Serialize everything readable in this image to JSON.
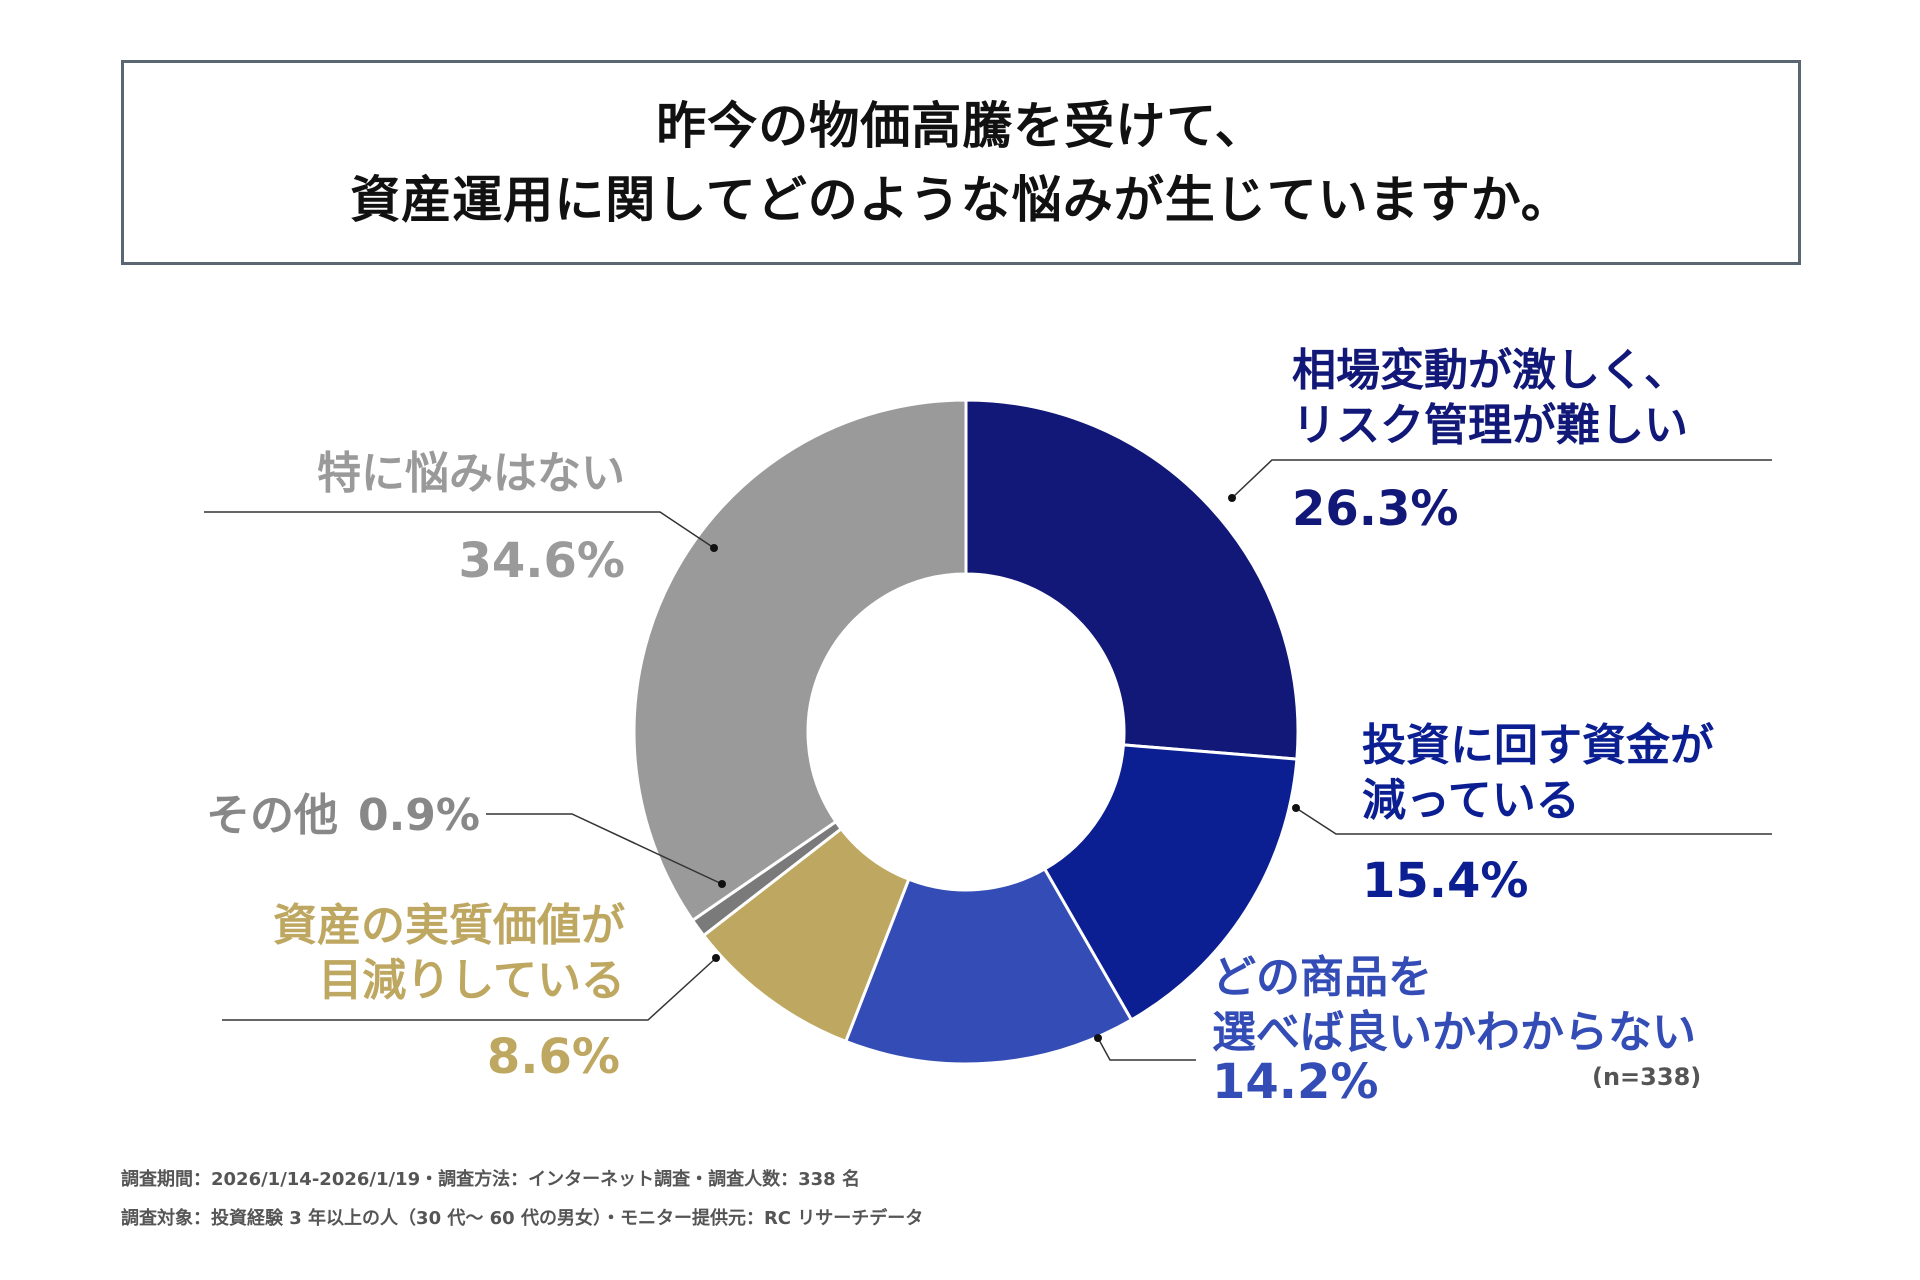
{
  "header": {
    "title_line1": "昨今の物価高騰を受けて、",
    "title_line2": "資産運用に関してどのような悩みが生じていますか。"
  },
  "chart_data": {
    "type": "pie",
    "style": "donut",
    "start": "top",
    "direction": "clockwise",
    "sample_note": "(n=338)",
    "slices": [
      {
        "label_lines": [
          "相場変動が激しく、",
          "リスク管理が難しい"
        ],
        "value": 26.3,
        "value_label": "26.3%",
        "color": "#121877"
      },
      {
        "label_lines": [
          "投資に回す資金が",
          "減っている"
        ],
        "value": 15.4,
        "value_label": "15.4%",
        "color": "#0c1f92"
      },
      {
        "label_lines": [
          "どの商品を",
          "選べば良いかわからない"
        ],
        "value": 14.2,
        "value_label": "14.2%",
        "color": "#344db6"
      },
      {
        "label_lines": [
          "資産の実質価値が",
          "目減りしている"
        ],
        "value": 8.6,
        "value_label": "8.6%",
        "color": "#bea760"
      },
      {
        "label_lines": [
          "その他"
        ],
        "value": 0.9,
        "value_label": "0.9%",
        "color": "#7a7a7a"
      },
      {
        "label_lines": [
          "特に悩みはない"
        ],
        "value": 34.6,
        "value_label": "34.6%",
        "color": "#9a9a9a"
      }
    ]
  },
  "footer": {
    "line1": "調査期間：2026/1/14-2026/1/19・調査方法：インターネット調査・調査人数：338 名",
    "line2": "調査対象：投資経験 3 年以上の人（30 代～ 60 代の男女）・モニター提供元：RC リサーチデータ"
  }
}
